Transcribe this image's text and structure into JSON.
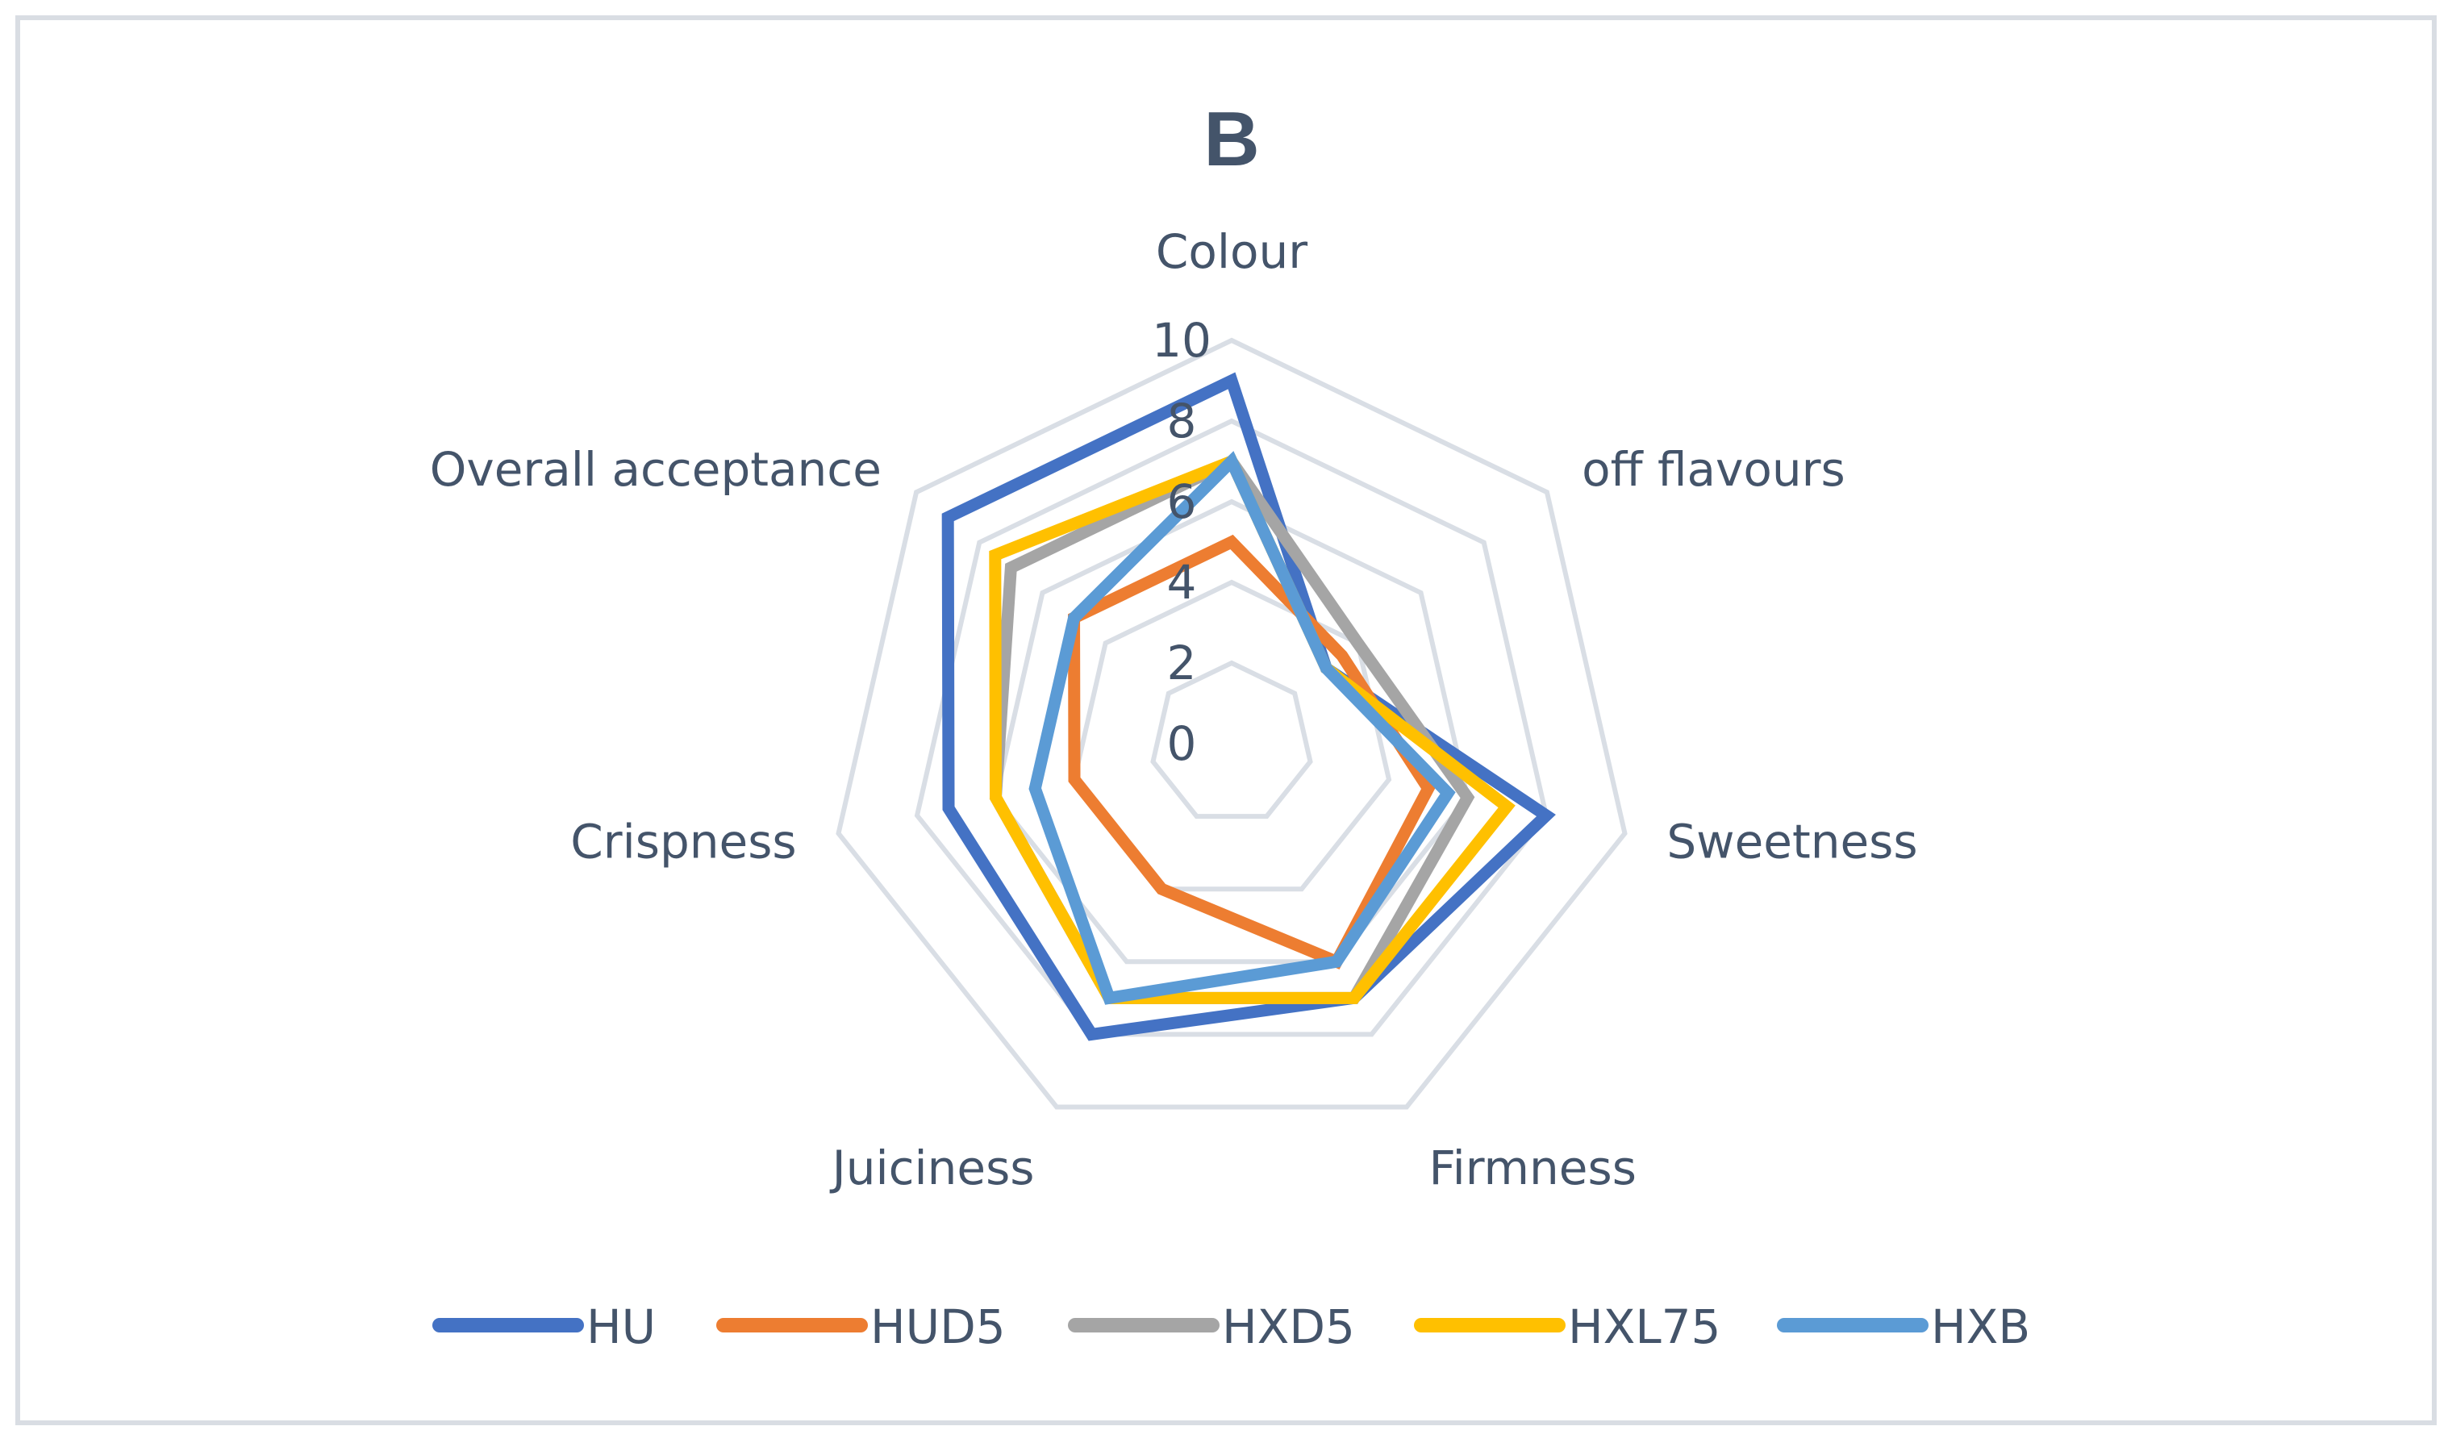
{
  "chart_data": {
    "type": "radar",
    "title": "B",
    "axes": [
      "Colour",
      "off flavours",
      "Sweetness",
      "Firmness",
      "Juiciness",
      "Crispness",
      "Overall acceptance"
    ],
    "ticks": [
      "0",
      "2",
      "4",
      "6",
      "8",
      "10"
    ],
    "rlim": [
      0,
      10
    ],
    "grid": true,
    "legend_position": "bottom",
    "series": [
      {
        "name": "HU",
        "color": "#4472c4",
        "values": [
          9.0,
          3.0,
          8.0,
          7.0,
          8.0,
          7.2,
          9.0
        ]
      },
      {
        "name": "HUD5",
        "color": "#ed7d31",
        "values": [
          5.0,
          3.5,
          5.0,
          6.0,
          4.0,
          4.0,
          5.0
        ]
      },
      {
        "name": "HXD5",
        "color": "#a5a5a5",
        "values": [
          7.0,
          4.0,
          6.0,
          7.0,
          7.0,
          6.0,
          7.0
        ]
      },
      {
        "name": "HXL75",
        "color": "#ffc000",
        "values": [
          7.0,
          3.0,
          7.0,
          7.0,
          7.0,
          6.0,
          7.5
        ]
      },
      {
        "name": "HXB",
        "color": "#5b9bd5",
        "values": [
          7.0,
          3.0,
          5.5,
          6.0,
          7.0,
          5.0,
          5.0
        ]
      }
    ]
  }
}
